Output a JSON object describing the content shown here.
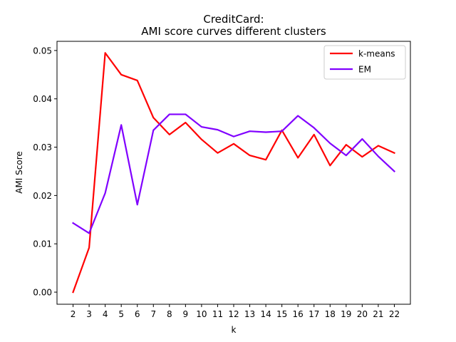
{
  "chart_data": {
    "type": "line",
    "title_line1": "CreditCard:",
    "title_line2": "AMI score curves different clusters",
    "xlabel": "k",
    "ylabel": "AMI Score",
    "x": [
      2,
      3,
      4,
      5,
      6,
      7,
      8,
      9,
      10,
      11,
      12,
      13,
      14,
      15,
      16,
      17,
      18,
      19,
      20,
      21,
      22
    ],
    "xlim": [
      1,
      23
    ],
    "ylim": [
      -0.0025,
      0.0519
    ],
    "yticks": [
      0.0,
      0.01,
      0.02,
      0.03,
      0.04,
      0.05
    ],
    "ytick_labels": [
      "0.00",
      "0.01",
      "0.02",
      "0.03",
      "0.04",
      "0.05"
    ],
    "grid": false,
    "legend_position": "top-right",
    "series": [
      {
        "name": "k-means",
        "color": "#ff0000",
        "values": [
          0.0,
          0.0092,
          0.0495,
          0.045,
          0.0438,
          0.0361,
          0.0326,
          0.0351,
          0.0316,
          0.0288,
          0.0307,
          0.0283,
          0.0274,
          0.0335,
          0.0278,
          0.0326,
          0.0262,
          0.0305,
          0.028,
          0.0303,
          0.0288
        ]
      },
      {
        "name": "EM",
        "color": "#8000ff",
        "values": [
          0.0143,
          0.0122,
          0.0205,
          0.0346,
          0.0181,
          0.0335,
          0.0368,
          0.0368,
          0.0342,
          0.0336,
          0.0322,
          0.0333,
          0.0331,
          0.0333,
          0.0365,
          0.034,
          0.0308,
          0.0283,
          0.0317,
          0.0281,
          0.025
        ]
      }
    ]
  }
}
